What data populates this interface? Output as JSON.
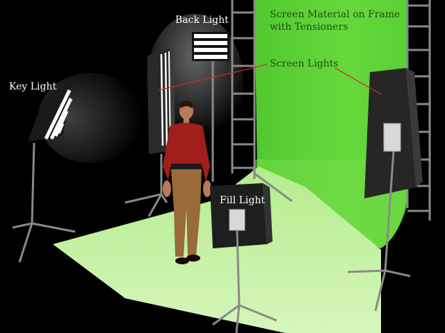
{
  "labels": {
    "back_light": "Back Light",
    "key_light": "Key Light",
    "fill_light": "Fill Light",
    "screen_material_line1": "Screen Material on Frame",
    "screen_material_line2": "with Tensioners",
    "screen_lights": "Screen Lights"
  },
  "colors": {
    "background": "#000000",
    "green_screen": "#5fd23a",
    "floor": "#c8f0a8",
    "callout_line": "#d8262a",
    "label_text_light": "#ffffff",
    "label_text_dark": "#1e4f14"
  }
}
